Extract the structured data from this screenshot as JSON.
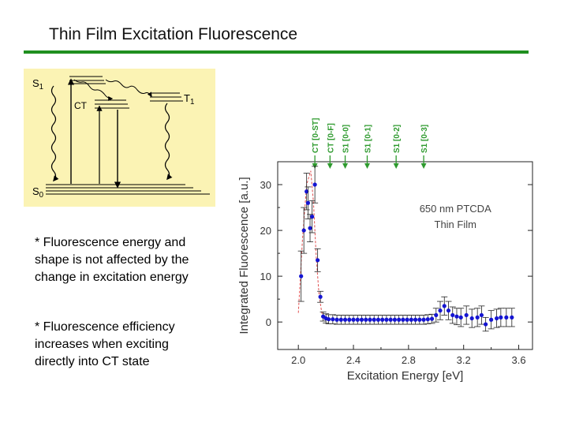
{
  "slide": {
    "title": "Thin Film Excitation Fluorescence",
    "accent_color": "#1f8f1f"
  },
  "diagram": {
    "background": "#fbf3b4",
    "labels": {
      "s1": {
        "main": "S",
        "sub": "1"
      },
      "t1": {
        "main": "T",
        "sub": "1"
      },
      "ct": "CT",
      "s0": {
        "main": "S",
        "sub": "0"
      }
    }
  },
  "notes": [
    "* Fluorescence energy and shape is not affected by the change in excitation energy",
    "* Fluorescence efficiency increases when exciting directly into CT state"
  ],
  "chart_data": {
    "type": "scatter",
    "title": "650 nm PTCDA",
    "subtitle": "Thin Film",
    "xlabel": "Excitation Energy [eV]",
    "ylabel": "Integrated Fluorescence [a.u.]",
    "xlim": [
      1.85,
      3.7
    ],
    "ylim": [
      -6,
      35
    ],
    "xticks": [
      2.0,
      2.4,
      2.8,
      3.2,
      3.6
    ],
    "xtick_labels": [
      "2.0",
      "2.4",
      "2.8",
      "3.2",
      "3.6"
    ],
    "yticks": [
      0,
      10,
      20,
      30
    ],
    "ytick_labels": [
      "0",
      "10",
      "20",
      "30"
    ],
    "marker_color": "#1414d2",
    "fit_color": "#e05050",
    "annotation_color": "#2e9a2e",
    "annotations": [
      {
        "label": "CT [0-ST]",
        "x": 2.12
      },
      {
        "label": "CT [0-F]",
        "x": 2.23
      },
      {
        "label": "S1 [0-0]",
        "x": 2.34
      },
      {
        "label": "S1 [0-1]",
        "x": 2.5
      },
      {
        "label": "S1 [0-2]",
        "x": 2.71
      },
      {
        "label": "S1 [0-3]",
        "x": 2.91
      }
    ],
    "series": [
      {
        "name": "data",
        "points": [
          {
            "x": 2.02,
            "y": 10,
            "err": 5.5
          },
          {
            "x": 2.04,
            "y": 20,
            "err": 5
          },
          {
            "x": 2.06,
            "y": 28.5,
            "err": 4
          },
          {
            "x": 2.07,
            "y": 26,
            "err": 3.5
          },
          {
            "x": 2.085,
            "y": 20.5,
            "err": 3
          },
          {
            "x": 2.1,
            "y": 23,
            "err": 3.5
          },
          {
            "x": 2.12,
            "y": 30,
            "err": 4
          },
          {
            "x": 2.14,
            "y": 13.5,
            "err": 2.5
          },
          {
            "x": 2.16,
            "y": 5.5,
            "err": 1.2
          },
          {
            "x": 2.18,
            "y": 1.2,
            "err": 1
          },
          {
            "x": 2.2,
            "y": 0.8,
            "err": 1
          },
          {
            "x": 2.22,
            "y": 0.6,
            "err": 1
          },
          {
            "x": 2.25,
            "y": 0.6,
            "err": 1
          },
          {
            "x": 2.28,
            "y": 0.5,
            "err": 1
          },
          {
            "x": 2.31,
            "y": 0.5,
            "err": 1
          },
          {
            "x": 2.34,
            "y": 0.5,
            "err": 1
          },
          {
            "x": 2.37,
            "y": 0.5,
            "err": 1
          },
          {
            "x": 2.4,
            "y": 0.5,
            "err": 1
          },
          {
            "x": 2.43,
            "y": 0.5,
            "err": 1
          },
          {
            "x": 2.46,
            "y": 0.5,
            "err": 1
          },
          {
            "x": 2.49,
            "y": 0.5,
            "err": 1
          },
          {
            "x": 2.52,
            "y": 0.5,
            "err": 1
          },
          {
            "x": 2.55,
            "y": 0.5,
            "err": 1
          },
          {
            "x": 2.58,
            "y": 0.5,
            "err": 1
          },
          {
            "x": 2.61,
            "y": 0.5,
            "err": 1
          },
          {
            "x": 2.64,
            "y": 0.5,
            "err": 1
          },
          {
            "x": 2.67,
            "y": 0.5,
            "err": 1
          },
          {
            "x": 2.7,
            "y": 0.5,
            "err": 1
          },
          {
            "x": 2.73,
            "y": 0.5,
            "err": 1
          },
          {
            "x": 2.76,
            "y": 0.5,
            "err": 1
          },
          {
            "x": 2.79,
            "y": 0.5,
            "err": 1
          },
          {
            "x": 2.82,
            "y": 0.5,
            "err": 1
          },
          {
            "x": 2.85,
            "y": 0.5,
            "err": 1
          },
          {
            "x": 2.88,
            "y": 0.5,
            "err": 1
          },
          {
            "x": 2.91,
            "y": 0.5,
            "err": 1
          },
          {
            "x": 2.94,
            "y": 0.6,
            "err": 1
          },
          {
            "x": 2.97,
            "y": 0.7,
            "err": 1
          },
          {
            "x": 3.0,
            "y": 1.5,
            "err": 1.5
          },
          {
            "x": 3.03,
            "y": 2.5,
            "err": 2
          },
          {
            "x": 3.06,
            "y": 3.5,
            "err": 2
          },
          {
            "x": 3.09,
            "y": 2.5,
            "err": 2
          },
          {
            "x": 3.12,
            "y": 1.5,
            "err": 1.8
          },
          {
            "x": 3.15,
            "y": 1.2,
            "err": 1.8
          },
          {
            "x": 3.18,
            "y": 1.0,
            "err": 2
          },
          {
            "x": 3.22,
            "y": 1.5,
            "err": 2
          },
          {
            "x": 3.26,
            "y": 0.8,
            "err": 2
          },
          {
            "x": 3.3,
            "y": 1.0,
            "err": 2
          },
          {
            "x": 3.33,
            "y": 1.5,
            "err": 2
          },
          {
            "x": 3.36,
            "y": -0.5,
            "err": 1.5
          },
          {
            "x": 3.4,
            "y": 0.5,
            "err": 2
          },
          {
            "x": 3.44,
            "y": 0.8,
            "err": 2
          },
          {
            "x": 3.47,
            "y": 1.0,
            "err": 2
          },
          {
            "x": 3.51,
            "y": 1.0,
            "err": 2
          },
          {
            "x": 3.55,
            "y": 1.0,
            "err": 2
          }
        ]
      }
    ],
    "fit": [
      {
        "x": 2.0,
        "y": 2
      },
      {
        "x": 2.03,
        "y": 18
      },
      {
        "x": 2.06,
        "y": 30
      },
      {
        "x": 2.09,
        "y": 33
      },
      {
        "x": 2.11,
        "y": 26
      },
      {
        "x": 2.13,
        "y": 14
      },
      {
        "x": 2.15,
        "y": 6
      },
      {
        "x": 2.17,
        "y": 2
      },
      {
        "x": 2.19,
        "y": 0.5
      }
    ]
  }
}
